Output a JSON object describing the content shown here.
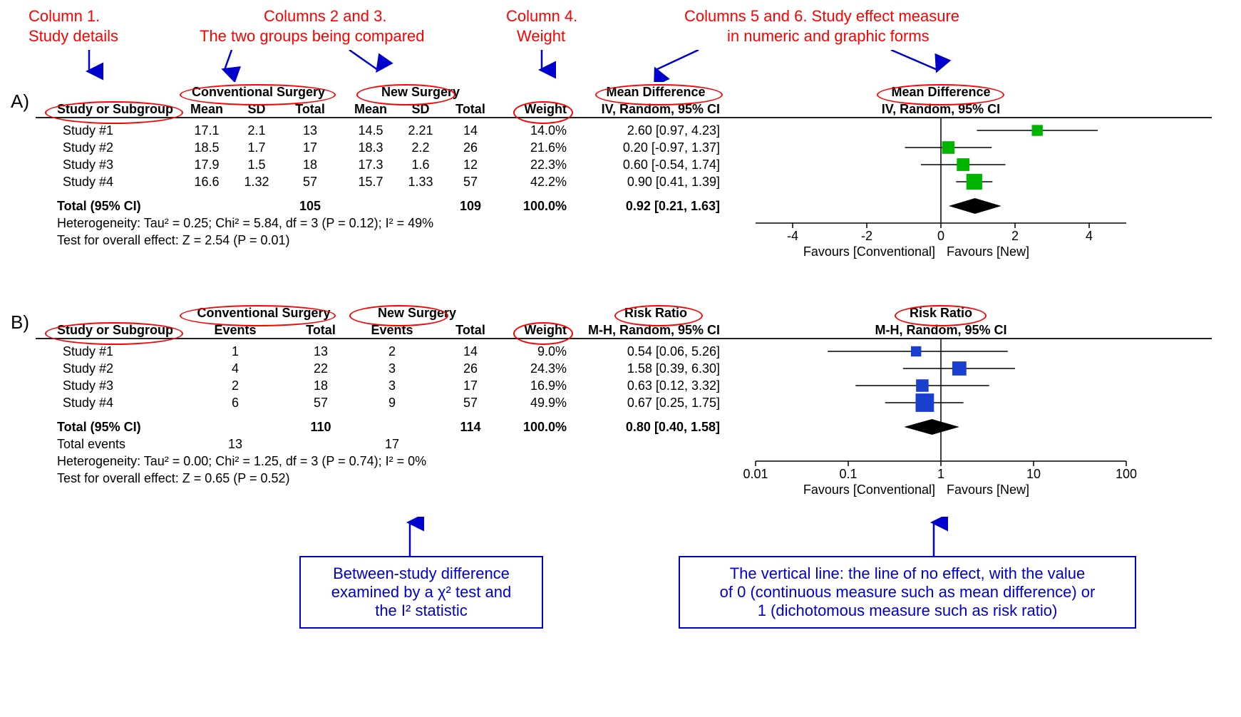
{
  "colors": {
    "annotation_red": "#ff0000",
    "arrow_blue": "#0000cc",
    "marker_green": "#00b400",
    "marker_blue": "#1a3fcf",
    "axis_black": "#000000"
  },
  "topLabels": {
    "col1_a": "Column 1.",
    "col1_b": "Study details",
    "col23_a": "Columns 2 and 3.",
    "col23_b": "The two groups being compared",
    "col4_a": "Column 4.",
    "col4_b": "Weight",
    "col56_a": "Columns 5 and 6. Study effect measure",
    "col56_b": "in numeric and graphic forms"
  },
  "panelA": {
    "label": "A)",
    "superHeaders": {
      "conv": "Conventional Surgery",
      "newg": "New Surgery",
      "effect": "Mean Difference",
      "plot": "Mean Difference"
    },
    "headers": {
      "study": "Study or Subgroup",
      "mean1": "Mean",
      "sd1": "SD",
      "total1": "Total",
      "mean2": "Mean",
      "sd2": "SD",
      "total2": "Total",
      "weight": "Weight",
      "effect": "IV, Random, 95% CI",
      "plot": "IV, Random, 95% CI"
    },
    "rows": [
      {
        "study": "Study #1",
        "m1": "17.1",
        "sd1": "2.1",
        "t1": "13",
        "m2": "14.5",
        "sd2": "2.21",
        "t2": "14",
        "w": "14.0%",
        "eff": "2.60 [0.97, 4.23]",
        "pt": 2.6,
        "lo": 0.97,
        "hi": 4.23,
        "wt": 14.0
      },
      {
        "study": "Study #2",
        "m1": "18.5",
        "sd1": "1.7",
        "t1": "17",
        "m2": "18.3",
        "sd2": "2.2",
        "t2": "26",
        "w": "21.6%",
        "eff": "0.20 [-0.97, 1.37]",
        "pt": 0.2,
        "lo": -0.97,
        "hi": 1.37,
        "wt": 21.6
      },
      {
        "study": "Study #3",
        "m1": "17.9",
        "sd1": "1.5",
        "t1": "18",
        "m2": "17.3",
        "sd2": "1.6",
        "t2": "12",
        "w": "22.3%",
        "eff": "0.60 [-0.54, 1.74]",
        "pt": 0.6,
        "lo": -0.54,
        "hi": 1.74,
        "wt": 22.3
      },
      {
        "study": "Study #4",
        "m1": "16.6",
        "sd1": "1.32",
        "t1": "57",
        "m2": "15.7",
        "sd2": "1.33",
        "t2": "57",
        "w": "42.2%",
        "eff": "0.90 [0.41, 1.39]",
        "pt": 0.9,
        "lo": 0.41,
        "hi": 1.39,
        "wt": 42.2
      }
    ],
    "totalRow": {
      "label": "Total (95% CI)",
      "t1": "105",
      "t2": "109",
      "w": "100.0%",
      "eff": "0.92 [0.21, 1.63]",
      "pt": 0.92,
      "lo": 0.21,
      "hi": 1.63
    },
    "hetero": "Heterogeneity: Tau² = 0.25; Chi² = 5.84, df = 3 (P = 0.12); I² = 49%",
    "overall": "Test for overall effect: Z = 2.54 (P = 0.01)",
    "axis": {
      "min": -5,
      "max": 5,
      "ticks": [
        -4,
        -2,
        0,
        2,
        4
      ],
      "leftLab": "Favours [Conventional]",
      "rightLab": "Favours [New]",
      "scale": "linear"
    }
  },
  "panelB": {
    "label": "B)",
    "superHeaders": {
      "conv": "Conventional Surgery",
      "newg": "New Surgery",
      "effect": "Risk Ratio",
      "plot": "Risk Ratio"
    },
    "headers": {
      "study": "Study or Subgroup",
      "ev1": "Events",
      "total1": "Total",
      "ev2": "Events",
      "total2": "Total",
      "weight": "Weight",
      "effect": "M-H, Random, 95% CI",
      "plot": "M-H, Random, 95% CI"
    },
    "rows": [
      {
        "study": "Study #1",
        "e1": "1",
        "t1": "13",
        "e2": "2",
        "t2": "14",
        "w": "9.0%",
        "eff": "0.54 [0.06, 5.26]",
        "pt": 0.54,
        "lo": 0.06,
        "hi": 5.26,
        "wt": 9.0
      },
      {
        "study": "Study #2",
        "e1": "4",
        "t1": "22",
        "e2": "3",
        "t2": "26",
        "w": "24.3%",
        "eff": "1.58 [0.39, 6.30]",
        "pt": 1.58,
        "lo": 0.39,
        "hi": 6.3,
        "wt": 24.3
      },
      {
        "study": "Study #3",
        "e1": "2",
        "t1": "18",
        "e2": "3",
        "t2": "17",
        "w": "16.9%",
        "eff": "0.63 [0.12, 3.32]",
        "pt": 0.63,
        "lo": 0.12,
        "hi": 3.32,
        "wt": 16.9
      },
      {
        "study": "Study #4",
        "e1": "6",
        "t1": "57",
        "e2": "9",
        "t2": "57",
        "w": "49.9%",
        "eff": "0.67 [0.25, 1.75]",
        "pt": 0.67,
        "lo": 0.25,
        "hi": 1.75,
        "wt": 49.9
      }
    ],
    "totalRow": {
      "label": "Total (95% CI)",
      "t1": "110",
      "t2": "114",
      "w": "100.0%",
      "eff": "0.80 [0.40, 1.58]",
      "pt": 0.8,
      "lo": 0.4,
      "hi": 1.58
    },
    "totalEvents": {
      "label": "Total events",
      "e1": "13",
      "e2": "17"
    },
    "hetero": "Heterogeneity: Tau² = 0.00; Chi² = 1.25, df = 3 (P = 0.74); I² = 0%",
    "overall": "Test for overall effect: Z = 0.65 (P = 0.52)",
    "axis": {
      "ticks": [
        0.01,
        0.1,
        1,
        10,
        100
      ],
      "leftLab": "Favours [Conventional]",
      "rightLab": "Favours [New]",
      "scale": "log",
      "logMin": -2,
      "logMax": 2
    }
  },
  "callouts": {
    "left_l1": "Between-study difference",
    "left_l2": "examined by a χ² test and",
    "left_l3": "the I² statistic",
    "right_l1": "The vertical line: the line of no effect, with the value",
    "right_l2": "of 0 (continuous measure such as mean difference) or",
    "right_l3": "1 (dichotomous measure such as risk ratio)"
  }
}
